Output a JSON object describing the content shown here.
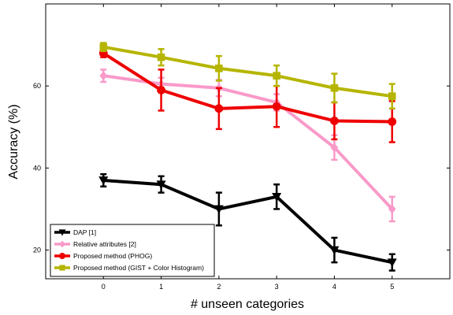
{
  "chart_data": {
    "type": "line",
    "xlabel": "# unseen categories",
    "ylabel": "Accuracy (%)",
    "xlim": [
      -1,
      6
    ],
    "ylim": [
      13,
      80
    ],
    "x": [
      0,
      1,
      2,
      3,
      4,
      5
    ],
    "xticks": [
      0,
      1,
      2,
      3,
      4,
      5
    ],
    "yticks": [
      20,
      40,
      60
    ],
    "grid": false,
    "legend_position": "bottom-left",
    "series": [
      {
        "name": "DAP [1]",
        "color": "#000000",
        "marker": "triangle-down",
        "values": [
          37,
          36,
          30,
          33,
          20,
          17
        ],
        "errors": [
          1.5,
          2,
          4,
          3,
          3,
          2
        ]
      },
      {
        "name": "Relative attributes [2]",
        "color": "#f99ac9",
        "marker": "diamond",
        "values": [
          62.5,
          60.5,
          59.5,
          56,
          45,
          30
        ],
        "errors": [
          1.5,
          1.5,
          2,
          2,
          3,
          3
        ]
      },
      {
        "name": "Proposed method (PHOG)",
        "color": "#ee0000",
        "marker": "circle",
        "values": [
          68,
          59,
          54.5,
          55,
          51.5,
          51.3
        ],
        "errors": [
          1,
          5,
          5,
          5,
          4.5,
          5
        ]
      },
      {
        "name": "Proposed method (GIST + Color Histogram)",
        "color": "#b5b500",
        "marker": "square",
        "values": [
          69.5,
          67,
          64.3,
          62.5,
          59.5,
          57.5
        ],
        "errors": [
          1,
          2,
          3,
          2.5,
          3.5,
          3
        ]
      }
    ]
  }
}
